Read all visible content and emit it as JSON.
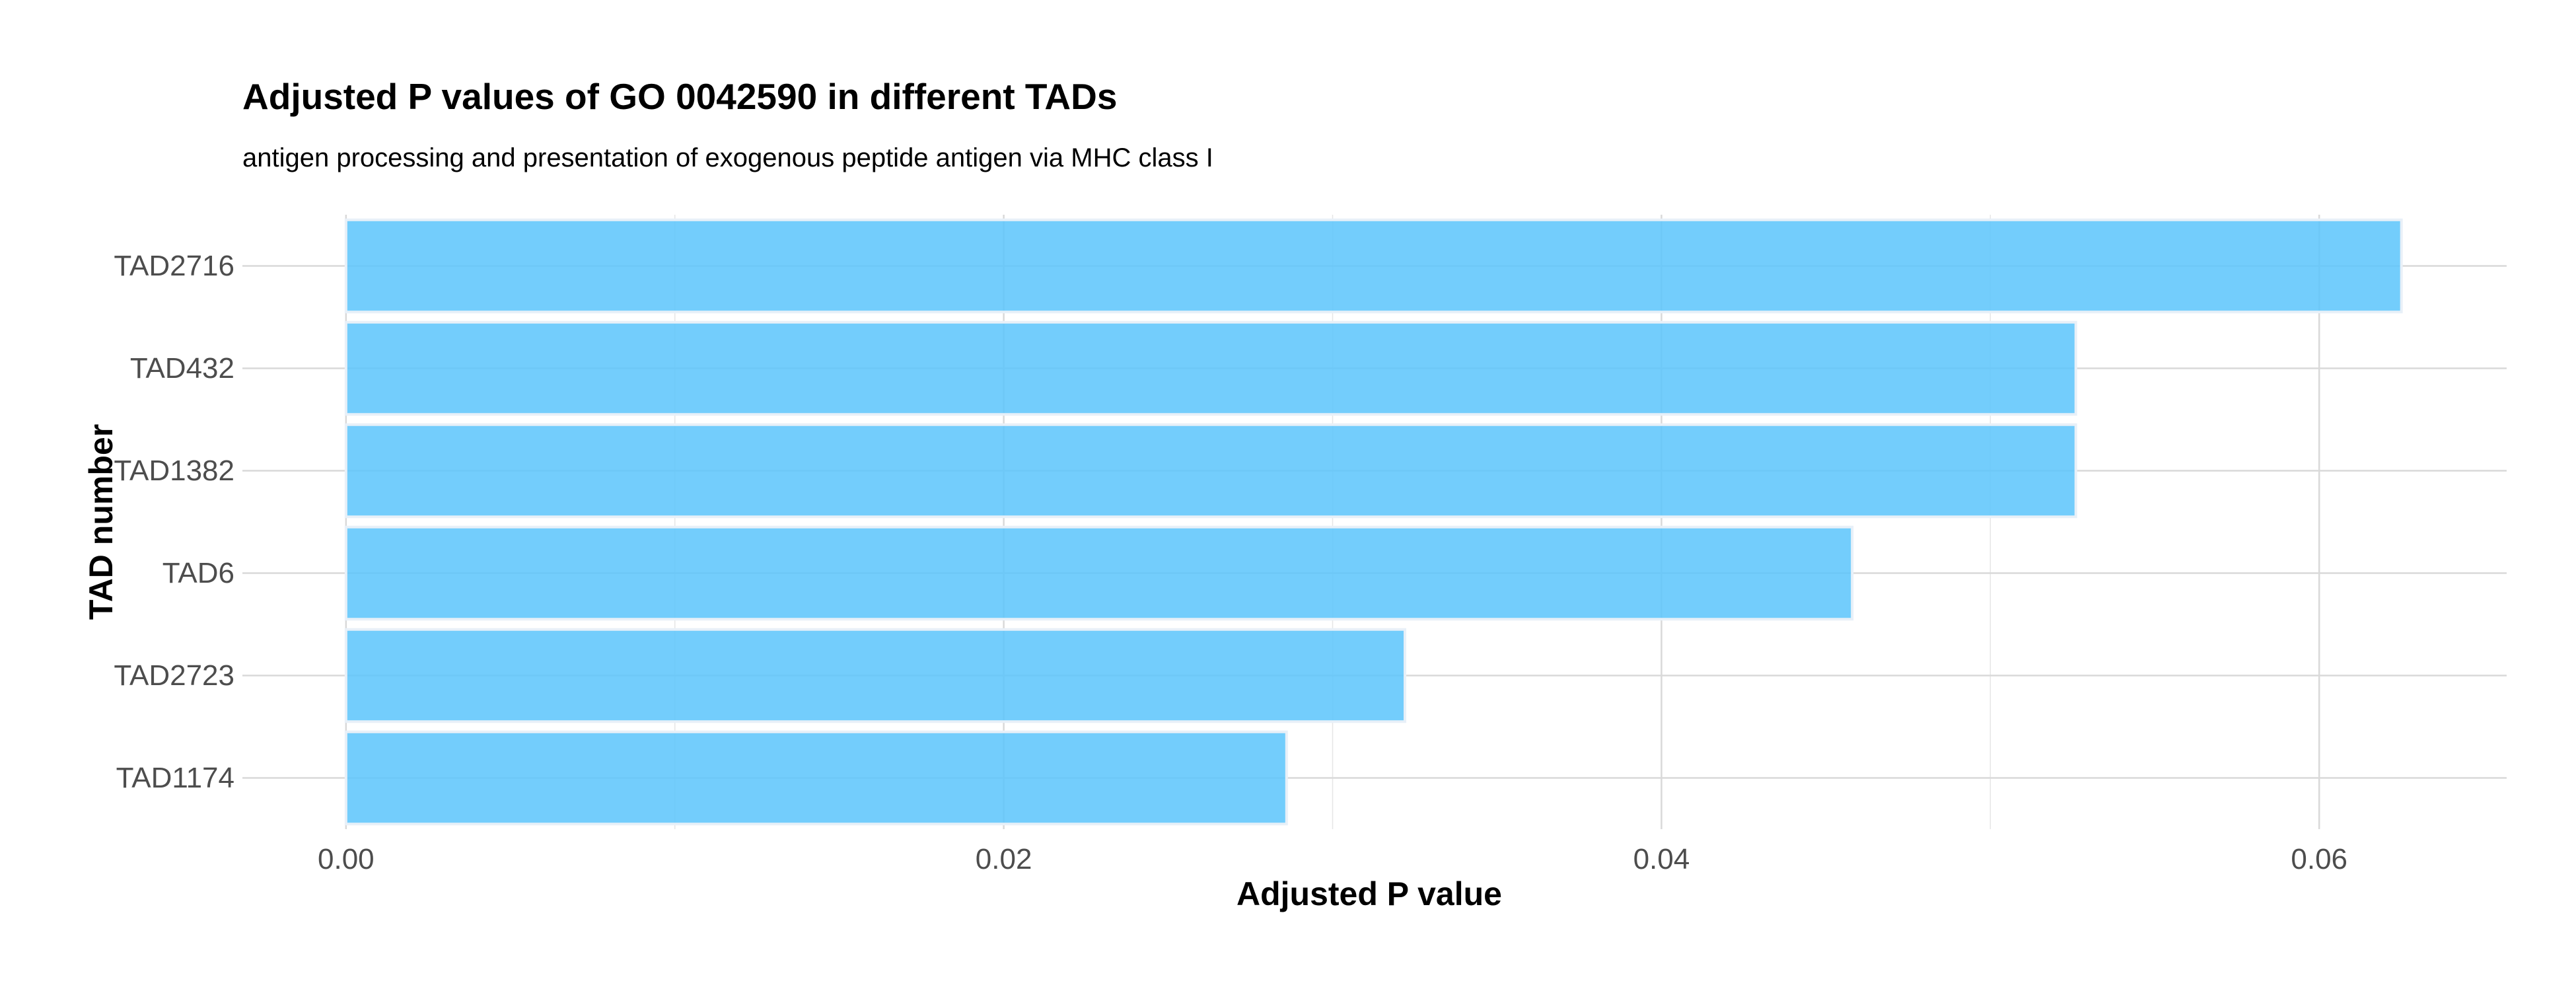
{
  "chart_data": {
    "type": "bar",
    "orientation": "horizontal",
    "title": "Adjusted P values of GO 0042590 in different TADs",
    "subtitle": "antigen processing and presentation of exogenous peptide antigen via MHC class I",
    "xlabel": "Adjusted P value",
    "ylabel": "TAD number",
    "categories": [
      "TAD2716",
      "TAD432",
      "TAD1382",
      "TAD6",
      "TAD2723",
      "TAD1174"
    ],
    "values": [
      0.0625,
      0.0526,
      0.0526,
      0.0458,
      0.0322,
      0.0286
    ],
    "xlim": [
      -0.00315,
      0.0657
    ],
    "x_ticks": [
      0.0,
      0.02,
      0.04,
      0.06
    ],
    "x_tick_labels": [
      "0.00",
      "0.02",
      "0.04",
      "0.06"
    ],
    "bar_color": "#5bc4fb",
    "grid": true,
    "legend": "none"
  }
}
